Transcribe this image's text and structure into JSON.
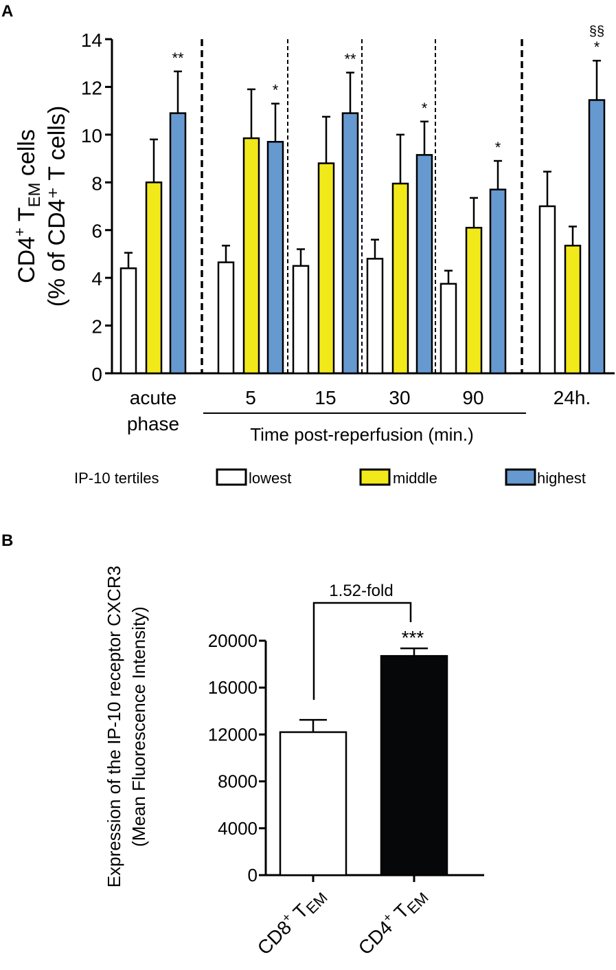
{
  "chart_data": [
    {
      "panel_label": "A",
      "type": "bar",
      "ylabel_line1": "CD4⁺ T",
      "ylabel_sub": "EM",
      "ylabel_line1_tail": " cells",
      "ylabel_line2": "(% of CD4⁺ T cells)",
      "ylim": [
        0,
        14
      ],
      "yticks": [
        0,
        2,
        4,
        6,
        8,
        10,
        12,
        14
      ],
      "categories": [
        "acute phase",
        "5",
        "15",
        "30",
        "90",
        "24h."
      ],
      "category_lines": [
        [
          "acute",
          "phase"
        ],
        [
          "5"
        ],
        [
          "15"
        ],
        [
          "30"
        ],
        [
          "90"
        ],
        [
          "24h."
        ]
      ],
      "group_label": "Time post-reperfusion (min.)",
      "legend_title": "IP-10 tertiles",
      "legend_placement": "bottom",
      "series": [
        {
          "name": "lowest",
          "color": "#ffffff",
          "values": [
            4.4,
            4.65,
            4.5,
            4.8,
            3.75,
            7.0
          ],
          "error_upper": [
            5.05,
            5.35,
            5.2,
            5.6,
            4.3,
            8.45
          ],
          "annotations": [
            "",
            "",
            "",
            "",
            "",
            ""
          ]
        },
        {
          "name": "middle",
          "color": "#f2e91a",
          "values": [
            8.0,
            9.85,
            8.8,
            7.95,
            6.1,
            5.35
          ],
          "error_upper": [
            9.8,
            11.9,
            10.75,
            10.0,
            7.35,
            6.15
          ],
          "annotations": [
            "",
            "",
            "",
            "",
            "",
            ""
          ]
        },
        {
          "name": "highest",
          "color": "#6699cf",
          "values": [
            10.9,
            9.7,
            10.9,
            9.15,
            7.7,
            11.45
          ],
          "error_upper": [
            12.65,
            11.3,
            12.6,
            10.55,
            8.9,
            13.1
          ],
          "annotations": [
            "**",
            "*",
            "**",
            "*",
            "*",
            "*"
          ]
        }
      ],
      "extra_annotation": {
        "category": "24h.",
        "series": "highest",
        "text": "§§"
      }
    },
    {
      "panel_label": "B",
      "type": "bar",
      "ylabel_line1": "Expression of the IP-10 receptor CXCR3",
      "ylabel_line2": "(Mean Fluorescence Intensity)",
      "ylim": [
        0,
        20000
      ],
      "yticks": [
        0,
        4000,
        8000,
        12000,
        16000,
        20000
      ],
      "categories": [
        "CD8⁺ T",
        "CD4⁺ T"
      ],
      "category_sub": "EM",
      "values": [
        12200,
        18700
      ],
      "error_upper": [
        13250,
        19350
      ],
      "colors": [
        "#ffffff",
        "#050708"
      ],
      "annotations": [
        "",
        "***"
      ],
      "bracket_label": "1.52-fold"
    }
  ]
}
